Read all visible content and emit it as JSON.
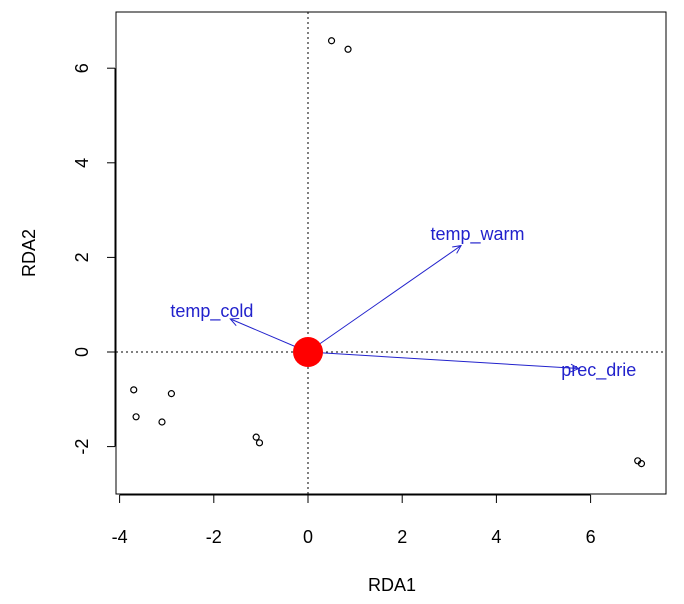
{
  "chart_data": {
    "type": "scatter",
    "xlabel": "RDA1",
    "ylabel": "RDA2",
    "xlim": [
      -4.1,
      7.5
    ],
    "ylim": [
      -3.0,
      7.1
    ],
    "x_ticks": [
      -4,
      -2,
      0,
      2,
      4,
      6
    ],
    "y_ticks": [
      -2,
      0,
      2,
      4,
      6
    ],
    "reference_lines": {
      "x": 0,
      "y": 0,
      "style": "dotted"
    },
    "grid": false,
    "points": [
      {
        "x": 0.5,
        "y": 6.58
      },
      {
        "x": 0.85,
        "y": 6.4
      },
      {
        "x": -3.7,
        "y": -0.8
      },
      {
        "x": -2.9,
        "y": -0.88
      },
      {
        "x": -3.65,
        "y": -1.37
      },
      {
        "x": -3.1,
        "y": -1.48
      },
      {
        "x": -1.1,
        "y": -1.8
      },
      {
        "x": -1.03,
        "y": -1.92
      },
      {
        "x": 7.0,
        "y": -2.3
      },
      {
        "x": 7.08,
        "y": -2.36
      }
    ],
    "centroid": {
      "x": 0,
      "y": 0,
      "color": "#ff0000"
    },
    "arrows": [
      {
        "label": "temp_warm",
        "x": 3.25,
        "y": 2.25
      },
      {
        "label": "temp_cold",
        "x": -1.65,
        "y": 0.7
      },
      {
        "label": "prec_drie",
        "x": 5.75,
        "y": -0.35
      }
    ],
    "colors": {
      "arrow": "#2222cc",
      "point": "#000000",
      "centroid": "#ff0000"
    }
  }
}
